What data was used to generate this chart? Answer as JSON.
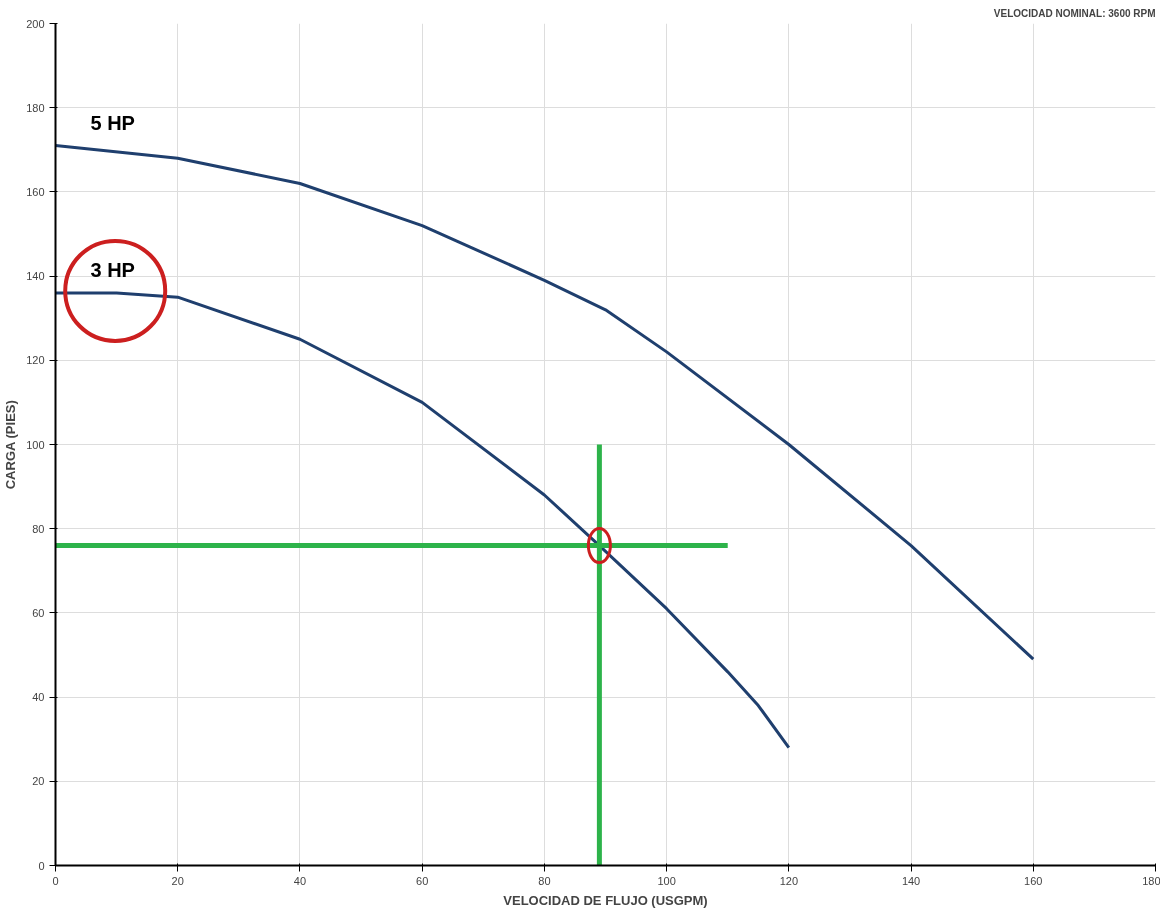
{
  "chart_data": {
    "type": "line",
    "xlabel": "VELOCIDAD DE FLUJO (USGPM)",
    "ylabel": "CARGA (PIES)",
    "annotations": [
      "VELOCIDAD NOMINAL: 3600 RPM"
    ],
    "xlim": [
      0,
      180
    ],
    "xticks": [
      0,
      20,
      40,
      60,
      80,
      100,
      120,
      140,
      160,
      180
    ],
    "ylim": [
      0,
      200
    ],
    "yticks": [
      0,
      20,
      40,
      60,
      80,
      100,
      120,
      140,
      160,
      180,
      200
    ],
    "grid": true,
    "marker": "none",
    "line_style": "solid",
    "series": [
      {
        "name": "5 HP",
        "color": "#1f3f6e",
        "x": [
          0,
          20,
          40,
          60,
          80,
          90,
          100,
          120,
          140,
          160
        ],
        "values": [
          171,
          168,
          162,
          152,
          139,
          132,
          122,
          100,
          76,
          49
        ]
      },
      {
        "name": "3 HP",
        "color": "#1f3f6e",
        "x": [
          0,
          10,
          20,
          40,
          60,
          80,
          89,
          100,
          110,
          115,
          120
        ],
        "values": [
          136,
          136,
          135,
          125,
          110,
          88,
          76,
          61,
          46,
          38,
          28
        ]
      },
      {
        "color": "#2db34a",
        "x": [
          0,
          110
        ],
        "values": [
          76,
          76
        ]
      },
      {
        "color": "#2db34a",
        "x": [
          89,
          89
        ],
        "values": [
          0,
          100
        ]
      }
    ]
  }
}
